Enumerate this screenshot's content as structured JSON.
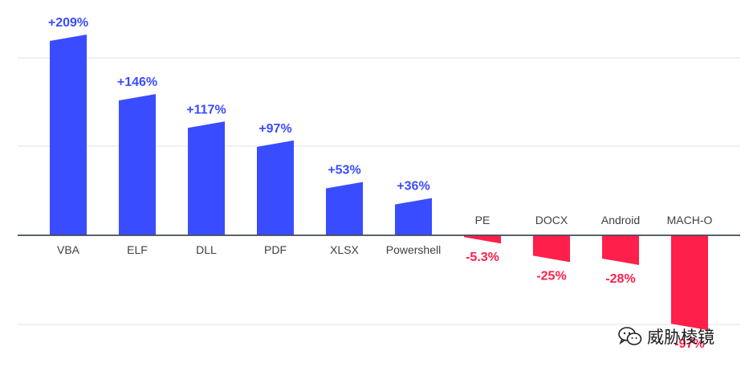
{
  "chart_data": {
    "type": "bar",
    "title": "",
    "xlabel": "",
    "ylabel": "",
    "grid": true,
    "legend": "none",
    "ylim": [
      -100,
      240
    ],
    "categories": [
      "VBA",
      "ELF",
      "DLL",
      "PDF",
      "XLSX",
      "Powershell",
      "PE",
      "DOCX",
      "Android",
      "MACH-O"
    ],
    "values": [
      209,
      146,
      117,
      97,
      53,
      36,
      -5.3,
      -25,
      -28,
      -97
    ],
    "value_labels": [
      "+209%",
      "+146%",
      "+117%",
      "+97%",
      "+53%",
      "+36%",
      "-5.3%",
      "-25%",
      "-28%",
      "-97%"
    ],
    "colors": {
      "positive": "#3a4cff",
      "negative": "#ff1f4b",
      "axis": "#444b55",
      "grid": "#e5e7eb",
      "category_text": "#3c3f44"
    }
  },
  "watermark": {
    "text": "威胁棱镜",
    "icon": "wechat-icon"
  }
}
